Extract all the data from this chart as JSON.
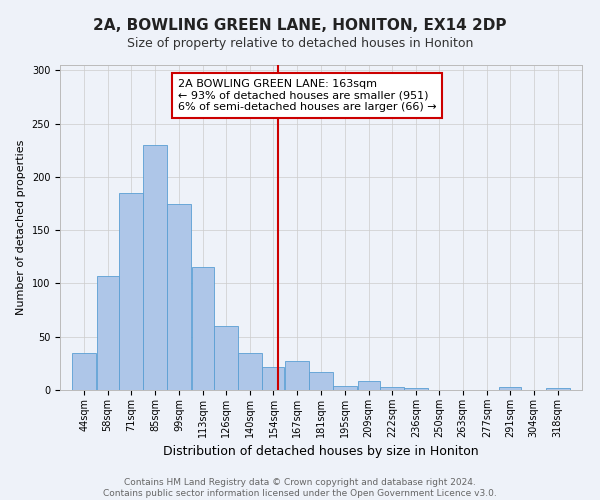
{
  "title": "2A, BOWLING GREEN LANE, HONITON, EX14 2DP",
  "subtitle": "Size of property relative to detached houses in Honiton",
  "xlabel": "Distribution of detached houses by size in Honiton",
  "ylabel": "Number of detached properties",
  "bar_labels": [
    "44sqm",
    "58sqm",
    "71sqm",
    "85sqm",
    "99sqm",
    "113sqm",
    "126sqm",
    "140sqm",
    "154sqm",
    "167sqm",
    "181sqm",
    "195sqm",
    "209sqm",
    "222sqm",
    "236sqm",
    "250sqm",
    "263sqm",
    "277sqm",
    "291sqm",
    "304sqm",
    "318sqm"
  ],
  "bar_values": [
    35,
    107,
    185,
    230,
    175,
    115,
    60,
    35,
    22,
    27,
    17,
    4,
    8,
    3,
    2,
    0,
    0,
    0,
    3,
    0,
    2
  ],
  "bar_edges": [
    44,
    58,
    71,
    85,
    99,
    113,
    126,
    140,
    154,
    167,
    181,
    195,
    209,
    222,
    236,
    250,
    263,
    277,
    291,
    304,
    318,
    332
  ],
  "bar_color": "#aec6e8",
  "bar_edge_color": "#5a9fd4",
  "vline_x": 163,
  "vline_color": "#cc0000",
  "annotation_line1": "2A BOWLING GREEN LANE: 163sqm",
  "annotation_line2": "← 93% of detached houses are smaller (951)",
  "annotation_line3": "6% of semi-detached houses are larger (66) →",
  "annotation_box_color": "#ffffff",
  "annotation_box_edge": "#cc0000",
  "ylim": [
    0,
    305
  ],
  "yticks": [
    0,
    50,
    100,
    150,
    200,
    250,
    300
  ],
  "grid_color": "#cccccc",
  "bg_color": "#eef2f9",
  "footer": "Contains HM Land Registry data © Crown copyright and database right 2024.\nContains public sector information licensed under the Open Government Licence v3.0.",
  "title_fontsize": 11,
  "subtitle_fontsize": 9,
  "xlabel_fontsize": 9,
  "ylabel_fontsize": 8,
  "tick_fontsize": 7,
  "annotation_fontsize": 8,
  "footer_fontsize": 6.5
}
